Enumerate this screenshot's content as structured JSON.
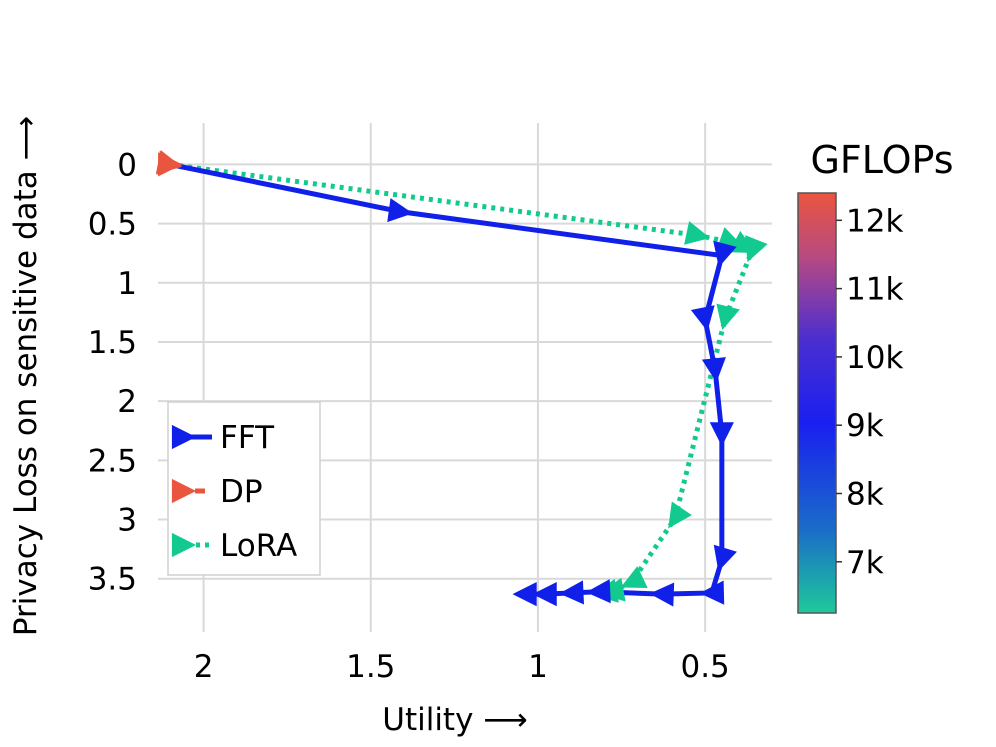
{
  "chart_data": {
    "type": "line",
    "title": "",
    "xlabel": "Utility ⟶",
    "ylabel": "Privacy Loss on sensitive data ⟶",
    "x_reversed": true,
    "y_reversed": true,
    "xlim": [
      2.25,
      0.3
    ],
    "ylim": [
      -0.35,
      3.95
    ],
    "x_ticks": [
      2,
      1.5,
      1,
      0.5
    ],
    "x_tick_labels": [
      "2",
      "1.5",
      "1",
      "0.5"
    ],
    "y_ticks": [
      0,
      0.5,
      1,
      1.5,
      2,
      2.5,
      3,
      3.5
    ],
    "y_tick_labels": [
      "0",
      "0.5",
      "1",
      "1.5",
      "2",
      "2.5",
      "3",
      "3.5"
    ],
    "grid": true,
    "legend_position": "bottom-left",
    "colorbar": {
      "title": "GFLOPs",
      "ticks": [
        "12k",
        "11k",
        "10k",
        "9k",
        "8k",
        "7k"
      ],
      "tick_values": [
        12000,
        11000,
        10000,
        9000,
        8000,
        7000
      ],
      "range": [
        6250,
        12400
      ],
      "colors": [
        "#1ec99b",
        "#1a6cc8",
        "#1a20f0",
        "#4a2ed0",
        "#b84a80",
        "#ea553f"
      ]
    },
    "series": [
      {
        "name": "FFT",
        "color": "#1020e8",
        "style": "solid",
        "x": [
          2.1,
          1.41,
          0.45,
          0.5,
          0.47,
          0.45,
          0.45,
          0.48,
          0.63,
          0.82,
          0.9,
          0.98,
          1.04
        ],
        "y": [
          0.0,
          0.4,
          0.77,
          1.31,
          1.74,
          2.28,
          3.34,
          3.62,
          3.63,
          3.61,
          3.62,
          3.63,
          3.63
        ]
      },
      {
        "name": "DP",
        "color": "#ea553f",
        "style": "dashed",
        "x": [
          2.1
        ],
        "y": [
          0.0
        ]
      },
      {
        "name": "LoRA",
        "color": "#12c990",
        "style": "dotted",
        "x": [
          2.1,
          0.52,
          0.42,
          0.38,
          0.36,
          0.44,
          0.59,
          0.72,
          0.78,
          0.8
        ],
        "y": [
          0.0,
          0.6,
          0.66,
          0.7,
          0.73,
          1.3,
          2.99,
          3.53,
          3.61,
          3.62
        ]
      }
    ]
  }
}
